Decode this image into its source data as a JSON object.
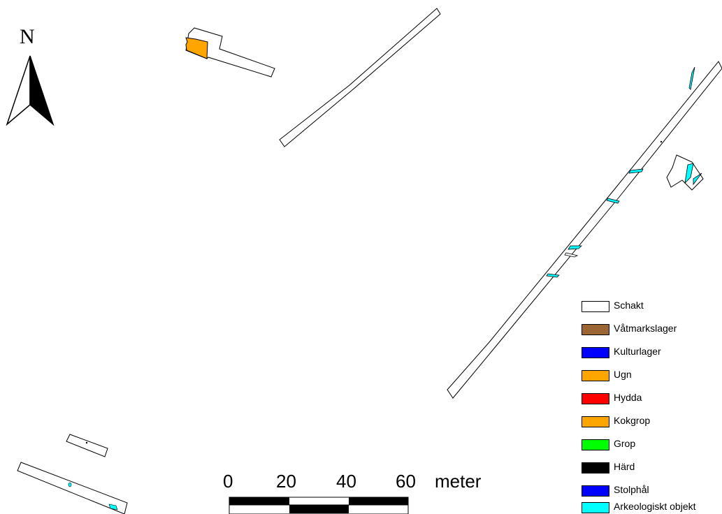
{
  "north_arrow": {
    "label": "N"
  },
  "scale_bar": {
    "ticks": [
      "0",
      "20",
      "40",
      "60"
    ],
    "unit": "meter"
  },
  "legend": {
    "items": [
      {
        "label": "Schakt",
        "color": "#ffffff"
      },
      {
        "label": "Våtmarkslager",
        "color": "#9b6634"
      },
      {
        "label": "Kulturlager",
        "color": "#0000ff"
      },
      {
        "label": "Ugn",
        "color": "#ffa500"
      },
      {
        "label": "Hydda",
        "color": "#ff0000"
      },
      {
        "label": "Kokgrop",
        "color": "#ffa500"
      },
      {
        "label": "Grop",
        "color": "#00ff00"
      },
      {
        "label": "Härd",
        "color": "#000000"
      },
      {
        "label": "Stolphål",
        "color": "#0000ff"
      },
      {
        "label": "Arkeologiskt objekt",
        "color": "#00ffff"
      }
    ]
  }
}
